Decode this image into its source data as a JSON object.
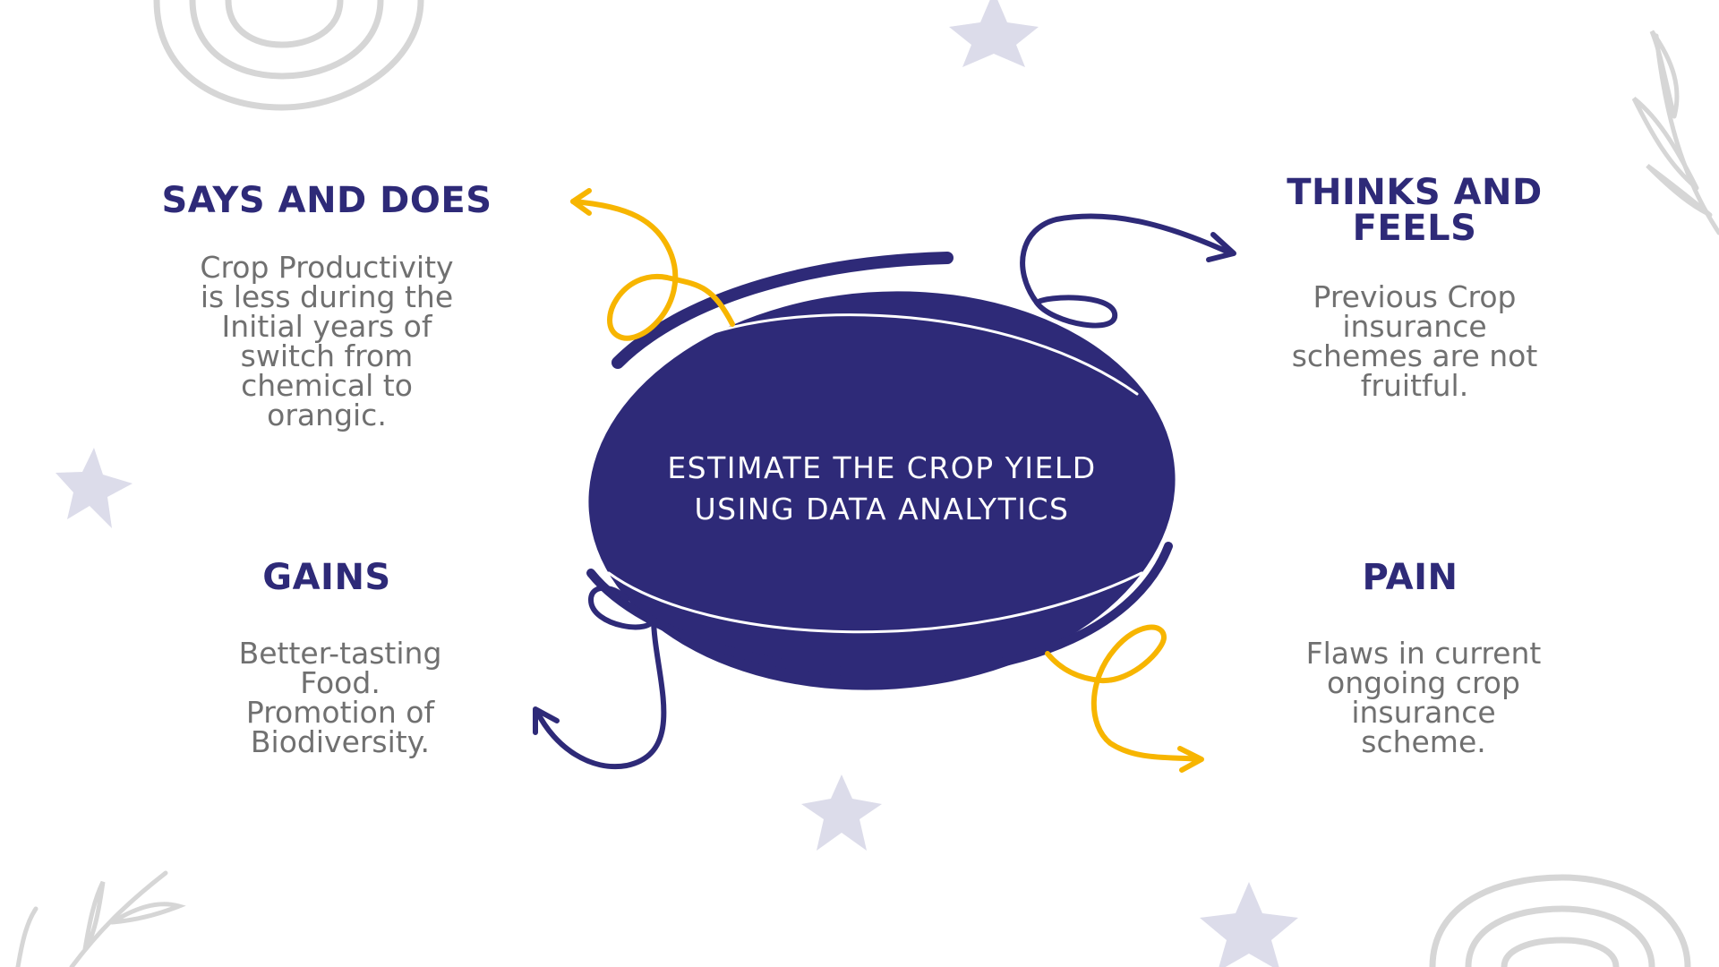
{
  "center": {
    "line1": "ESTIMATE THE CROP YIELD",
    "line2": "USING DATA ANALYTICS"
  },
  "quadrants": {
    "says_and_does": {
      "title": "SAYS AND DOES",
      "body": [
        "Crop Productivity",
        "is less during the",
        "Initial years of",
        "switch from",
        "chemical to",
        "orangic."
      ]
    },
    "thinks_and_feels": {
      "title": [
        "THINKS AND",
        "FEELS"
      ],
      "body": [
        "Previous Crop",
        "insurance",
        "schemes are not",
        "fruitful."
      ]
    },
    "gains": {
      "title": "GAINS",
      "body": [
        "Better-tasting",
        "Food.",
        "Promotion of",
        "Biodiversity."
      ]
    },
    "pain": {
      "title": "PAIN",
      "body": [
        "Flaws in current",
        "ongoing crop",
        "insurance",
        "scheme."
      ]
    }
  },
  "colors": {
    "navy": "#2e2a78",
    "yellow": "#f7b500",
    "gray_text": "#707070",
    "decor_gray": "#d4d4d4",
    "star": "#dcdcea"
  }
}
